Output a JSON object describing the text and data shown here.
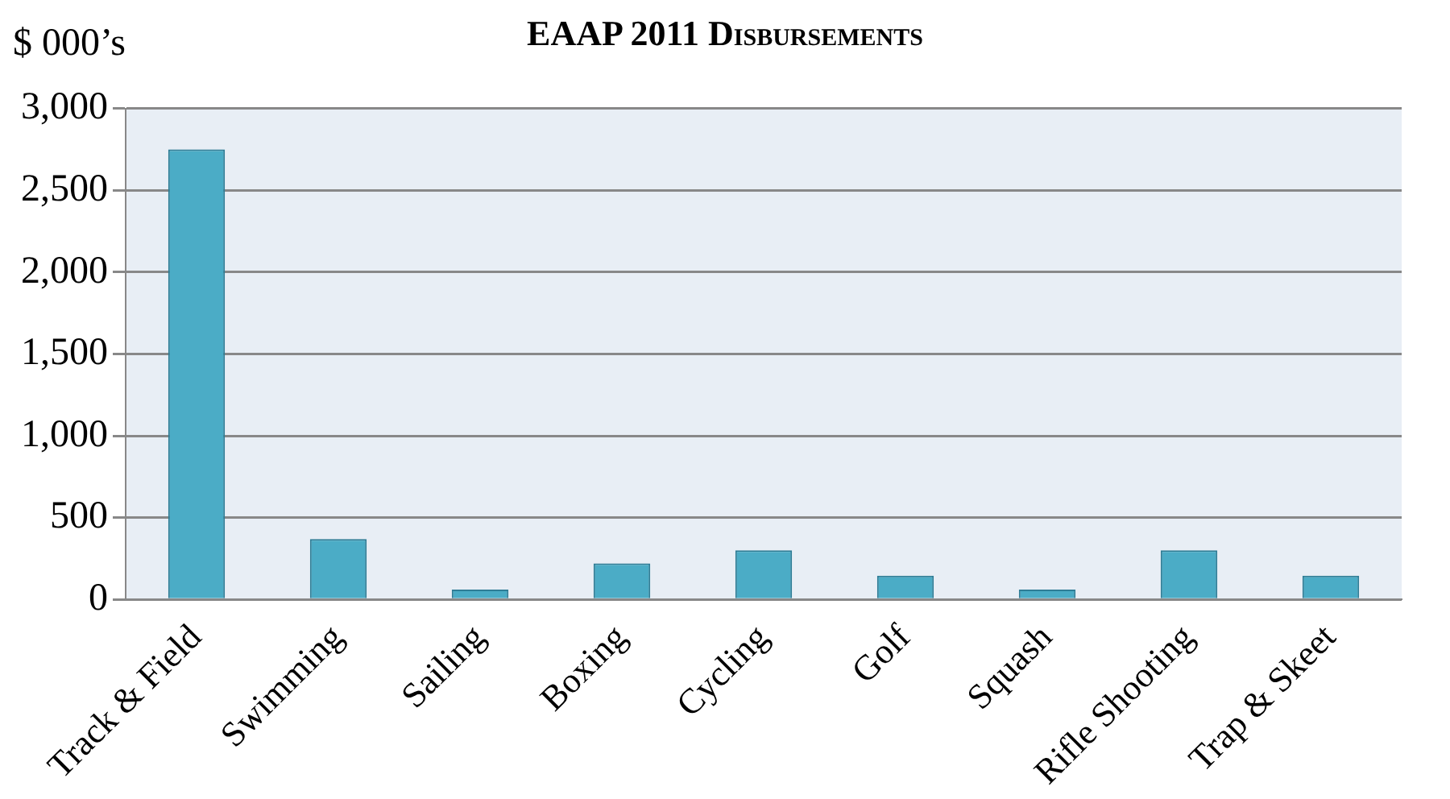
{
  "chart_data": {
    "type": "bar",
    "title": "EAAP 2011 Disbursements",
    "ylabel": "$ 000’s",
    "categories": [
      "Track & Field",
      "Swimming",
      "Sailing",
      "Boxing",
      "Cycling",
      "Golf",
      "Squash",
      "Rifle Shooting",
      "Trap & Skeet"
    ],
    "values": [
      2750,
      370,
      60,
      220,
      300,
      145,
      60,
      300,
      145
    ],
    "color": "#4bacc6",
    "ylim": [
      0,
      3000
    ],
    "yticks": [
      {
        "value": 0,
        "label": "0"
      },
      {
        "value": 500,
        "label": "500"
      },
      {
        "value": 1000,
        "label": "1,000"
      },
      {
        "value": 1500,
        "label": "1,500"
      },
      {
        "value": 2000,
        "label": "2,000"
      },
      {
        "value": 2500,
        "label": "2,500"
      },
      {
        "value": 3000,
        "label": "3,000"
      }
    ],
    "grid": "y"
  }
}
